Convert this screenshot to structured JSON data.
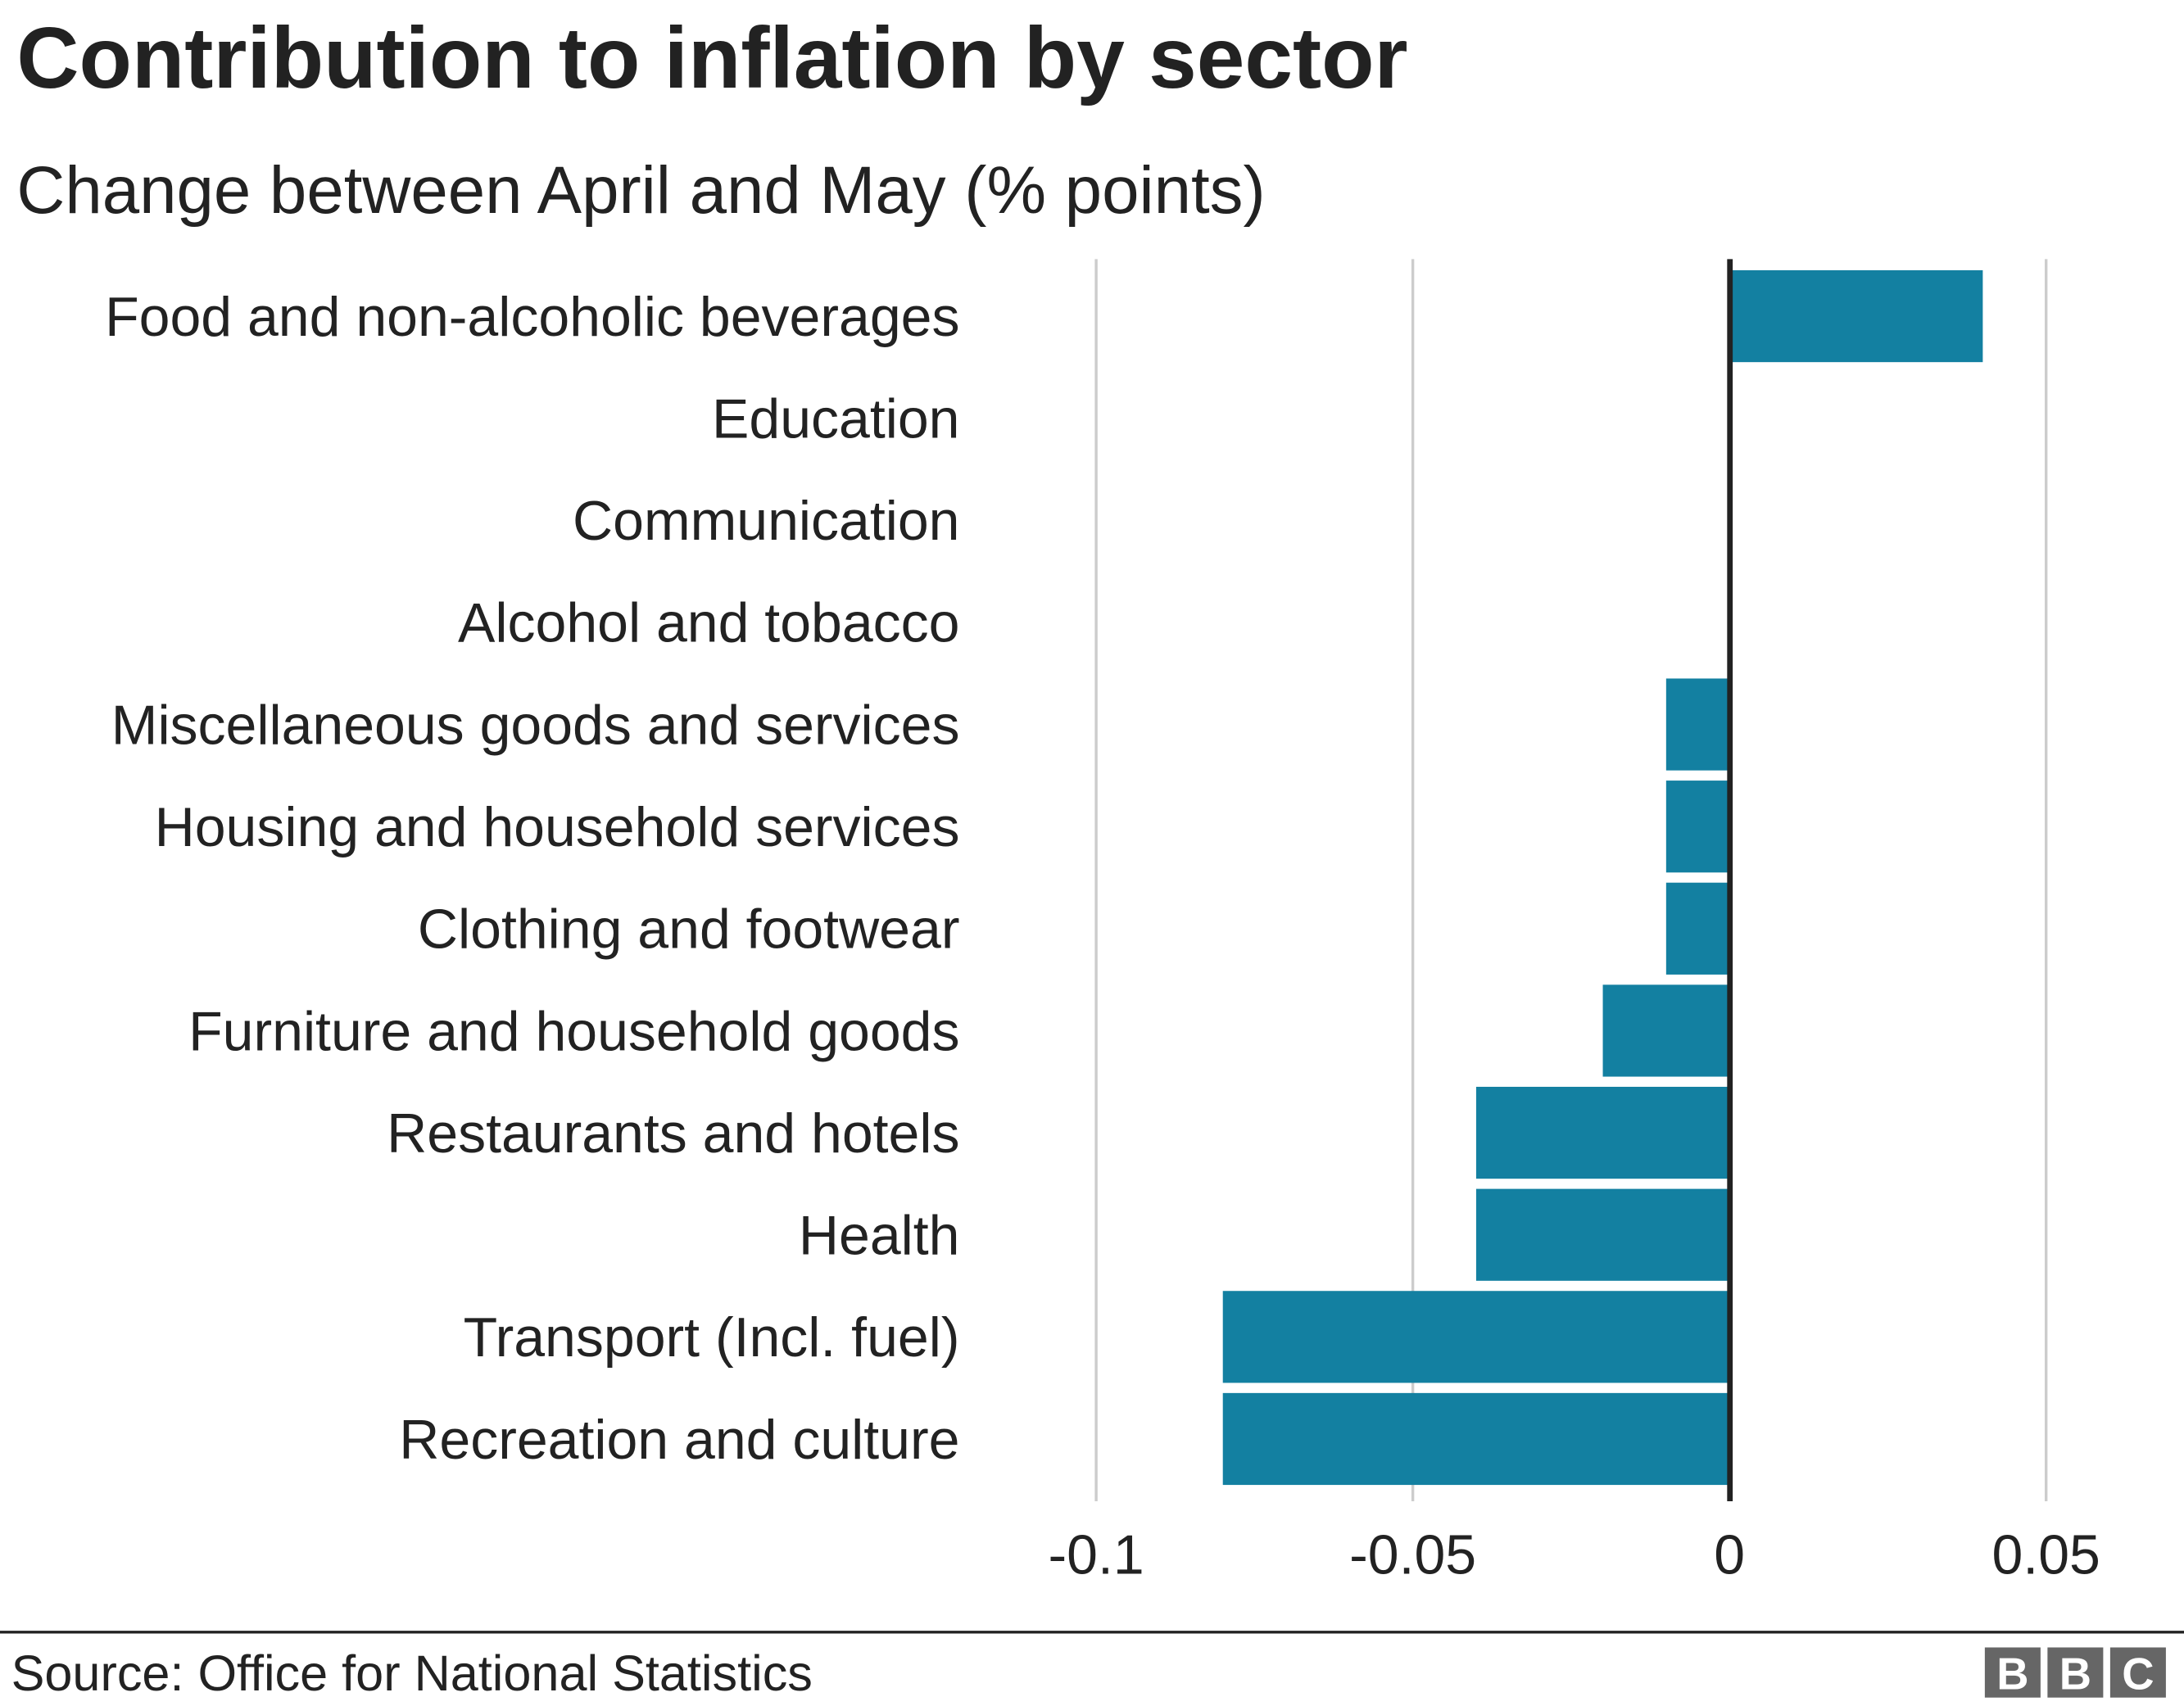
{
  "chart_data": {
    "type": "bar",
    "orientation": "horizontal",
    "title": "Contribution to inflation by sector",
    "subtitle": "Change between April and May (% points)",
    "categories": [
      "Food and non-alcoholic beverages",
      "Education",
      "Communication",
      "Alcohol and tobacco",
      "Miscellaneous goods and services",
      "Housing and household services",
      "Clothing and footwear",
      "Furniture and household goods",
      "Restaurants and hotels",
      "Health",
      "Transport (Incl. fuel)",
      "Recreation and culture"
    ],
    "values": [
      0.04,
      0,
      0,
      0,
      -0.01,
      -0.01,
      -0.01,
      -0.02,
      -0.04,
      -0.04,
      -0.08,
      -0.08
    ],
    "xlim": [
      -0.1,
      0.05
    ],
    "xticks": [
      -0.1,
      -0.05,
      0,
      0.05
    ],
    "xtick_labels": [
      "-0.1",
      "-0.05",
      "0",
      "0.05"
    ],
    "grid": "vertical",
    "bar_color": "#1380a1",
    "xlabel": "",
    "ylabel": ""
  },
  "footer": {
    "source": "Source: Office for National Statistics",
    "logo": "BBC"
  }
}
